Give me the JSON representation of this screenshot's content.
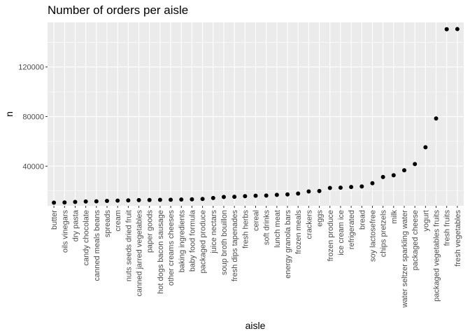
{
  "chart_data": {
    "type": "scatter",
    "title": "Number of orders per aisle",
    "xlabel": "aisle",
    "ylabel": "n",
    "ylim": [
      8000,
      156000
    ],
    "y_ticks": [
      40000,
      80000,
      120000
    ],
    "y_tick_labels": [
      "40000",
      "80000",
      "120000"
    ],
    "grid": true,
    "legend": "none",
    "colors": {
      "panel_background": "#ebebeb",
      "grid": "#ffffff",
      "point": "#000000"
    },
    "categories": [
      "butter",
      "oils vinegars",
      "dry pasta",
      "candy chocolate",
      "canned meals beans",
      "spreads",
      "cream",
      "nuts seeds dried fruit",
      "canned jarred vegetables",
      "paper goods",
      "hot dogs bacon sausage",
      "other creams cheeses",
      "baking ingredients",
      "baby food formula",
      "packaged produce",
      "juice nectars",
      "soup broth bouillon",
      "fresh dips tapenades",
      "fresh herbs",
      "cereal",
      "soft drinks",
      "lunch meat",
      "energy granola bars",
      "frozen meals",
      "crackers",
      "eggs",
      "frozen produce",
      "ice cream ice",
      "refrigerated",
      "bread",
      "soy lactosefree",
      "chips pretzels",
      "milk",
      "water seltzer sparkling water",
      "packaged cheese",
      "yogurt",
      "packaged vegetables fruits",
      "fresh fruits",
      "fresh vegetables"
    ],
    "values": [
      10575,
      10700,
      11100,
      11450,
      11600,
      11950,
      12200,
      12350,
      12600,
      12650,
      12800,
      12900,
      13050,
      13200,
      13500,
      14300,
      15100,
      15250,
      15800,
      16100,
      16250,
      16800,
      17200,
      17900,
      19550,
      19900,
      22400,
      22600,
      23150,
      23600,
      26200,
      31250,
      32650,
      36650,
      41700,
      55250,
      78500,
      150500,
      150600
    ]
  }
}
